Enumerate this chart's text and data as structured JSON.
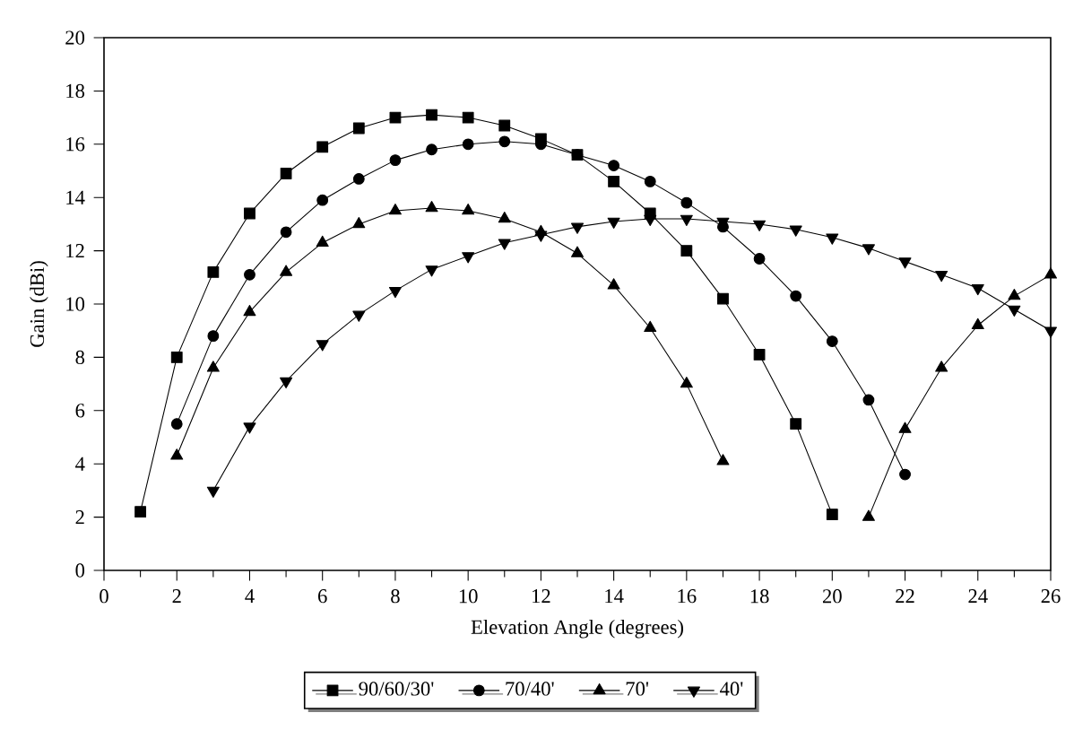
{
  "chart_data": {
    "type": "line",
    "xlabel": "Elevation Angle (degrees)",
    "ylabel": "Gain (dBi)",
    "xlim": [
      0,
      26
    ],
    "ylim": [
      0,
      20
    ],
    "xticks": [
      0,
      2,
      4,
      6,
      8,
      10,
      12,
      14,
      16,
      18,
      20,
      22,
      24,
      26
    ],
    "yticks": [
      0,
      2,
      4,
      6,
      8,
      10,
      12,
      14,
      16,
      18,
      20
    ],
    "grid": false,
    "legend": "bottom",
    "series": [
      {
        "name": "90/60/30'",
        "color": "#000000",
        "marker": "square",
        "x": [
          1,
          2,
          3,
          4,
          5,
          6,
          7,
          8,
          9,
          10,
          11,
          12,
          13,
          14,
          15,
          16,
          17,
          18,
          19,
          20
        ],
        "values": [
          2.2,
          8.0,
          11.2,
          13.4,
          14.9,
          15.9,
          16.6,
          17.0,
          17.1,
          17.0,
          16.7,
          16.2,
          15.6,
          14.6,
          13.4,
          12.0,
          10.2,
          8.1,
          5.5,
          2.1
        ]
      },
      {
        "name": "70/40'",
        "color": "#000000",
        "marker": "circle",
        "x": [
          2,
          3,
          4,
          5,
          6,
          7,
          8,
          9,
          10,
          11,
          12,
          13,
          14,
          15,
          16,
          17,
          18,
          19,
          20,
          21,
          22
        ],
        "values": [
          5.5,
          8.8,
          11.1,
          12.7,
          13.9,
          14.7,
          15.4,
          15.8,
          16.0,
          16.1,
          16.0,
          15.6,
          15.2,
          14.6,
          13.8,
          12.9,
          11.7,
          10.3,
          8.6,
          6.4,
          3.6
        ]
      },
      {
        "name": "70'",
        "color": "#000000",
        "marker": "triangle",
        "x": [
          2,
          3,
          4,
          5,
          6,
          7,
          8,
          9,
          10,
          11,
          12,
          13,
          14,
          15,
          16,
          17,
          18,
          19,
          20,
          21,
          22,
          23,
          24,
          25,
          26
        ],
        "values": [
          4.3,
          7.6,
          9.7,
          11.2,
          12.3,
          13.0,
          13.5,
          13.6,
          13.5,
          13.2,
          12.7,
          11.9,
          10.7,
          9.1,
          7.0,
          4.1,
          null,
          null,
          null,
          2.0,
          5.3,
          7.6,
          9.2,
          10.3,
          11.1
        ]
      },
      {
        "name": "40'",
        "color": "#000000",
        "marker": "triangle-down",
        "x": [
          3,
          4,
          5,
          6,
          7,
          8,
          9,
          10,
          11,
          12,
          13,
          14,
          15,
          16,
          17,
          18,
          19,
          20,
          21,
          22,
          23,
          24,
          25,
          26
        ],
        "values": [
          3.0,
          5.4,
          7.1,
          8.5,
          9.6,
          10.5,
          11.3,
          11.8,
          12.3,
          12.6,
          12.9,
          13.1,
          13.2,
          13.2,
          13.1,
          13.0,
          12.8,
          12.5,
          12.1,
          11.6,
          11.1,
          10.6,
          9.8,
          9.0
        ]
      }
    ]
  }
}
